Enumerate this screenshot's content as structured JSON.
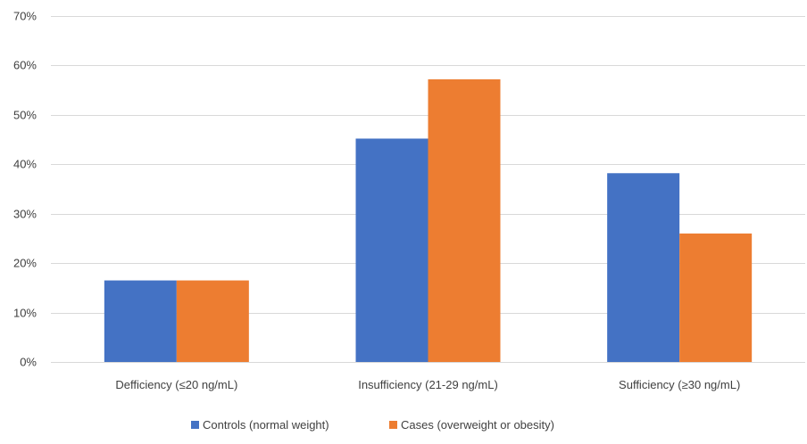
{
  "chart_data": {
    "type": "bar",
    "categories": [
      "Defficiency (≤20 ng/mL)",
      "Insufficiency (21-29 ng/mL)",
      "Sufficiency (≥30 ng/mL)"
    ],
    "series": [
      {
        "name": "Controls (normal weight)",
        "values": [
          16.5,
          45.2,
          38.2
        ],
        "color": "#4472C4"
      },
      {
        "name": "Cases (overweight or obesity)",
        "values": [
          16.5,
          57.2,
          26.0
        ],
        "color": "#ED7D31"
      }
    ],
    "y_ticks": [
      "0%",
      "10%",
      "20%",
      "30%",
      "40%",
      "50%",
      "60%",
      "70%"
    ],
    "ylim": [
      0,
      70
    ],
    "grid": true,
    "legend_position": "bottom",
    "gridline_color": "#D9D9D9"
  }
}
